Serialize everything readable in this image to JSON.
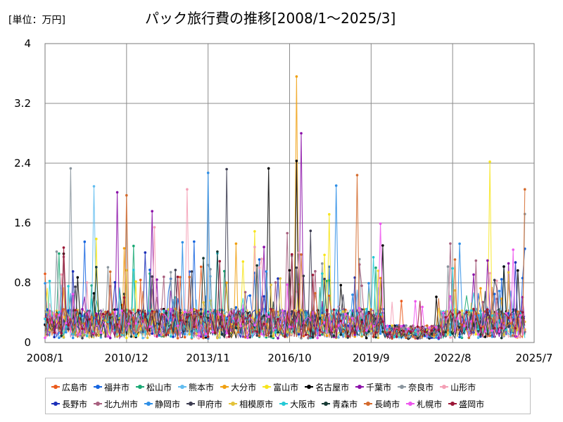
{
  "header": {
    "unit_label": "[単位：万円]",
    "title": "パック旅行費の推移[2008/1〜2025/3]"
  },
  "chart_data": {
    "type": "line",
    "title": "パック旅行費の推移[2008/1〜2025/3]",
    "unit": "[単位：万円]",
    "xlabel": "",
    "ylabel": "",
    "x_range": [
      "2008/1",
      "2025/7"
    ],
    "ylim": [
      0,
      4
    ],
    "y_ticks": [
      "0",
      "0.8",
      "1.6",
      "2.4",
      "3.2",
      "4"
    ],
    "x_ticks": [
      "2008/1",
      "2010/12",
      "2013/11",
      "2016/10",
      "2019/9",
      "2022/8",
      "2025/7"
    ],
    "grid": true,
    "legend_position": "bottom",
    "series": [
      {
        "name": "広島市",
        "color": "#ea5a1c"
      },
      {
        "name": "福井市",
        "color": "#1565e0"
      },
      {
        "name": "松山市",
        "color": "#19a974"
      },
      {
        "name": "熊本市",
        "color": "#62bdf0"
      },
      {
        "name": "大分市",
        "color": "#f0a010"
      },
      {
        "name": "富山市",
        "color": "#f7e51c"
      },
      {
        "name": "名古屋市",
        "color": "#000000"
      },
      {
        "name": "千葉市",
        "color": "#8b0fa8"
      },
      {
        "name": "奈良市",
        "color": "#8a959e"
      },
      {
        "name": "山形市",
        "color": "#f4a0b6"
      },
      {
        "name": "長野市",
        "color": "#1b2fb8"
      },
      {
        "name": "北九州市",
        "color": "#a8607f"
      },
      {
        "name": "静岡市",
        "color": "#2d8ee6"
      },
      {
        "name": "甲府市",
        "color": "#3c3c50"
      },
      {
        "name": "相模原市",
        "color": "#e3c23a"
      },
      {
        "name": "大阪市",
        "color": "#24c9d6"
      },
      {
        "name": "青森市",
        "color": "#173a35"
      },
      {
        "name": "長崎市",
        "color": "#d46a2c"
      },
      {
        "name": "札幌市",
        "color": "#ee55ee"
      },
      {
        "name": "盛岡市",
        "color": "#9b1636"
      }
    ],
    "notable_points": [
      {
        "series": "奈良市",
        "x": "2008/12",
        "y": 2.33
      },
      {
        "series": "熊本市",
        "x": "2009/10",
        "y": 2.09
      },
      {
        "series": "千葉市",
        "x": "2010/8",
        "y": 2.01
      },
      {
        "series": "長崎市",
        "x": "2010/12",
        "y": 1.97
      },
      {
        "series": "静岡市",
        "x": "2013/11",
        "y": 2.27
      },
      {
        "series": "山形市",
        "x": "2013/2",
        "y": 2.05
      },
      {
        "series": "甲府市",
        "x": "2014/7",
        "y": 2.32
      },
      {
        "series": "名古屋市",
        "x": "2016/1",
        "y": 2.33
      },
      {
        "series": "大分市",
        "x": "2017/1",
        "y": 3.56
      },
      {
        "series": "千葉市",
        "x": "2017/3",
        "y": 2.8
      },
      {
        "series": "名古屋市",
        "x": "2017/1",
        "y": 2.43
      },
      {
        "series": "静岡市",
        "x": "2018/6",
        "y": 2.1
      },
      {
        "series": "長崎市",
        "x": "2019/3",
        "y": 2.24
      },
      {
        "series": "富山市",
        "x": "2023/12",
        "y": 2.42
      },
      {
        "series": "長崎市",
        "x": "2025/3",
        "y": 2.05
      },
      {
        "series": "奈良市",
        "x": "2025/3",
        "y": 1.72
      }
    ]
  }
}
